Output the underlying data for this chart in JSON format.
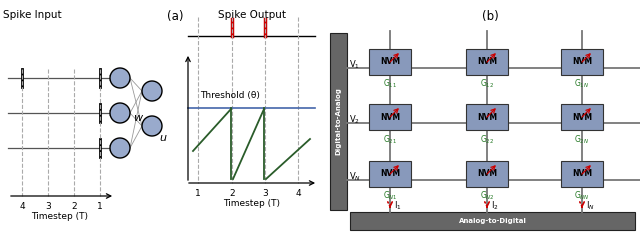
{
  "fig_width": 6.4,
  "fig_height": 2.38,
  "dpi": 100,
  "bg_color": "#ffffff",
  "label_a": "(a)",
  "label_b": "(b)",
  "spike_input_label": "Spike Input",
  "spike_output_label": "Spike Output",
  "threshold_label": "Threshold (θ)",
  "timestep_label": "Timestep (T)",
  "w_label": "w",
  "u_label": "u",
  "dta_label": "Digital-to-Analog",
  "atd_label": "Analog-to-Digital",
  "nvm_color": "#8899bb",
  "nvm_label": "NVM",
  "g_color": "#227722",
  "neuron_color": "#99aacc",
  "neuron_edge": "#000000",
  "spike_color": "#cc0000",
  "threshold_color": "#4466aa",
  "membrane_color": "#2a5c2a",
  "grid_color": "#888888",
  "arrow_color": "#cc0000",
  "bar_color": "#666666"
}
